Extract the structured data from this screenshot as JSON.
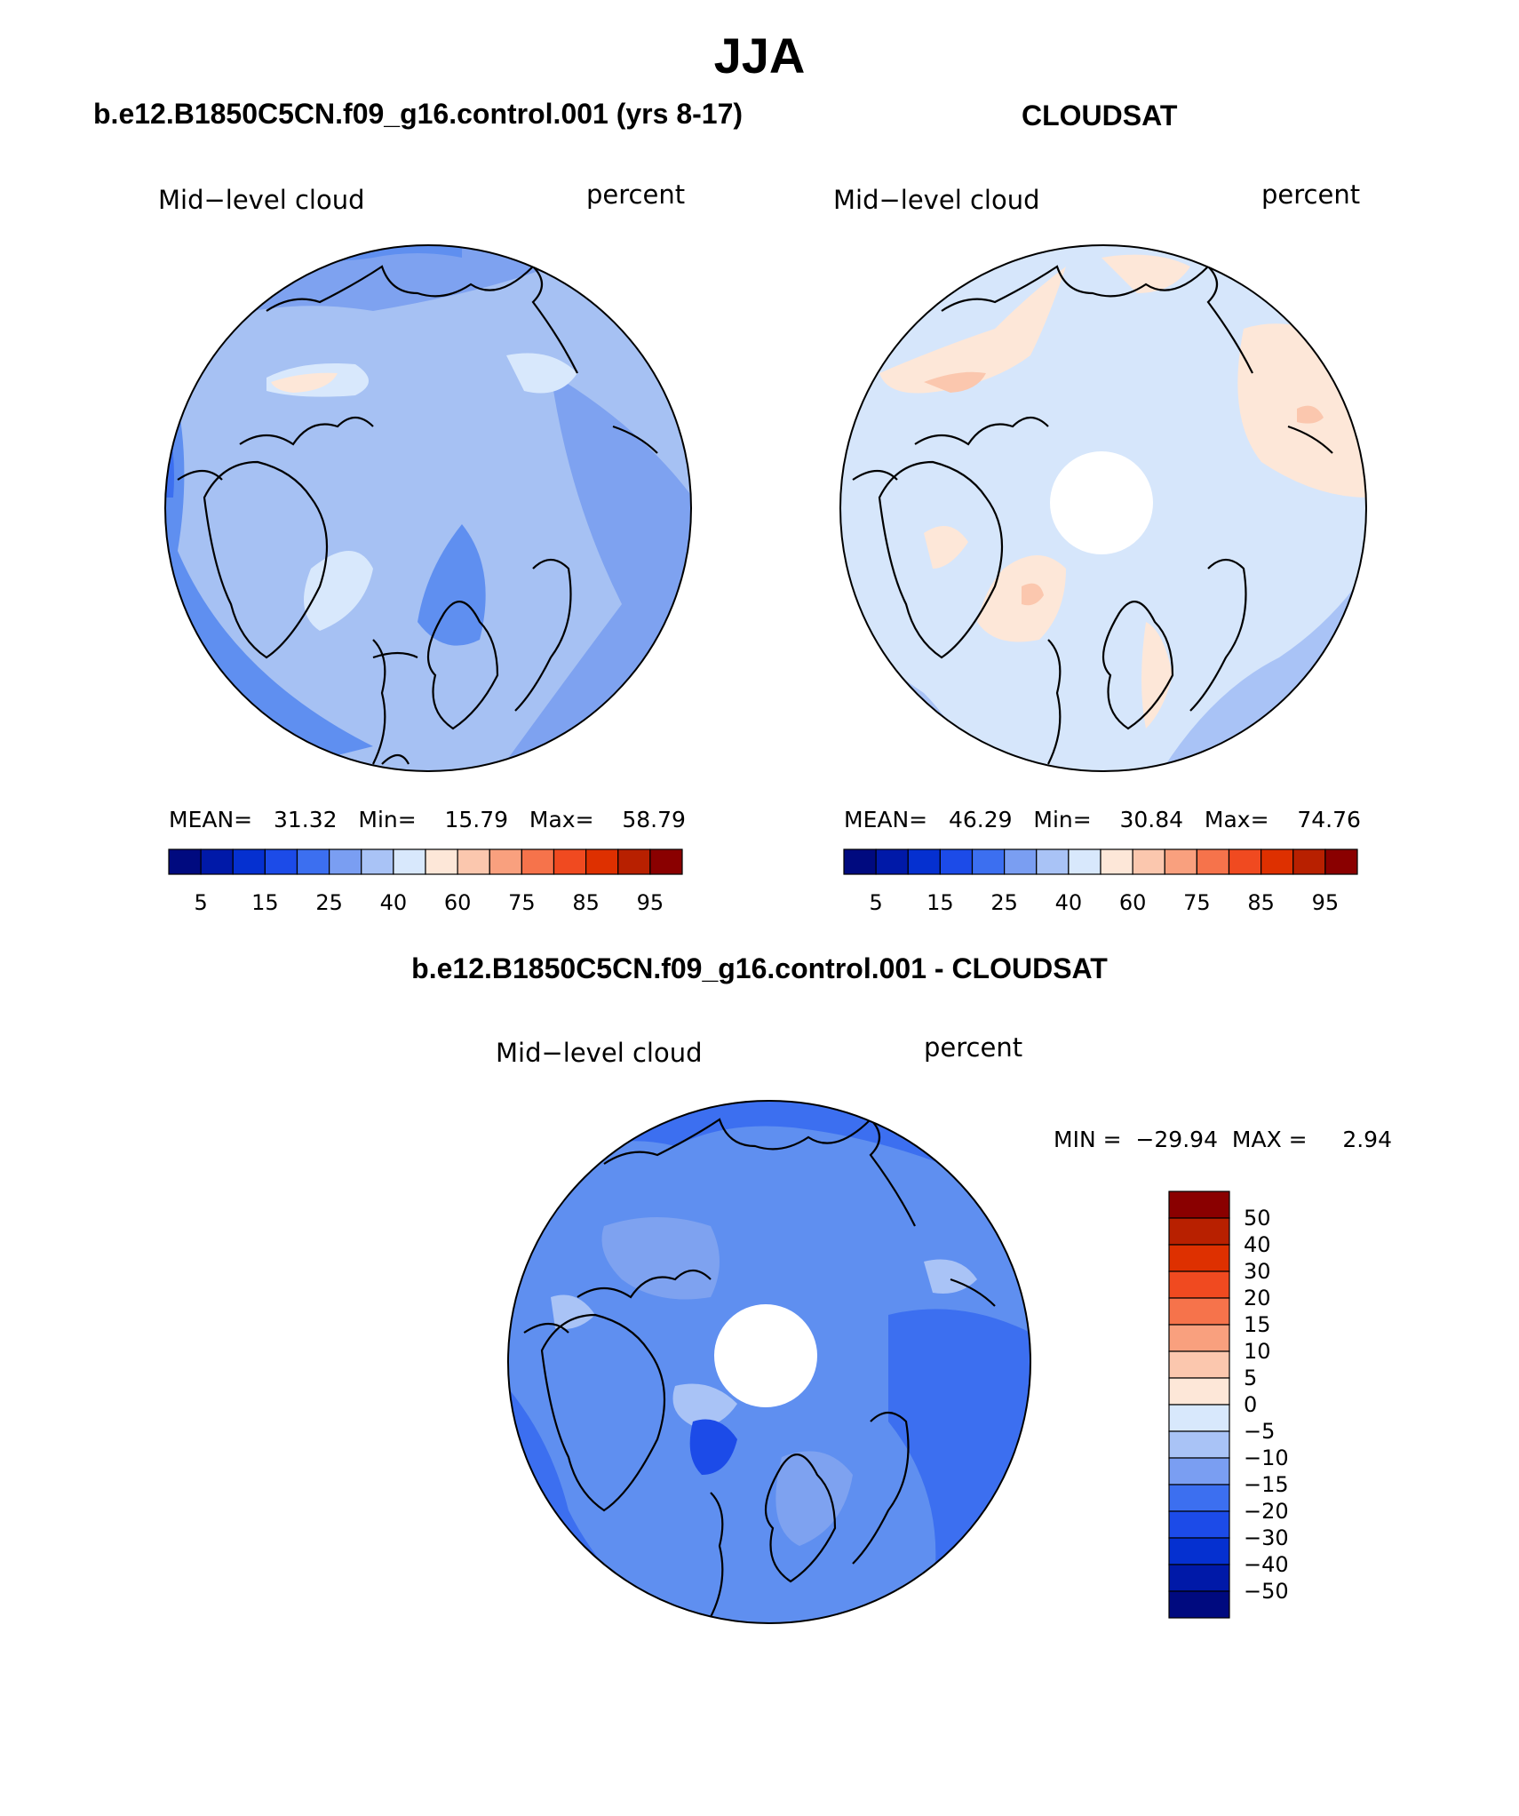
{
  "title": "JJA",
  "panels": [
    {
      "title": "b.e12.B1850C5CN.f09_g16.control.001 (yrs 8-17)",
      "variable": "Mid−level cloud",
      "units": "percent",
      "stats": {
        "mean_label": "MEAN=",
        "mean": "31.32",
        "min_label": "Min=",
        "min": "15.79",
        "max_label": "Max=",
        "max": "58.79"
      }
    },
    {
      "title": "CLOUDSAT",
      "variable": "Mid−level cloud",
      "units": "percent",
      "stats": {
        "mean_label": "MEAN=",
        "mean": "46.29",
        "min_label": "Min=",
        "min": "30.84",
        "max_label": "Max=",
        "max": "74.76"
      }
    },
    {
      "title": "b.e12.B1850C5CN.f09_g16.control.001 - CLOUDSAT",
      "variable": "Mid−level cloud",
      "units": "percent",
      "stats": {
        "min_label": "MIN =",
        "min": "−29.94",
        "max_label": "MAX =",
        "max": "2.94"
      }
    }
  ],
  "colorbar_abs": {
    "colors": [
      "#000a7f",
      "#0019a8",
      "#0530d0",
      "#1c4be8",
      "#3c6ff0",
      "#7a9ef2",
      "#a9c3f6",
      "#d8e8fc",
      "#fde7d8",
      "#fbc7ae",
      "#f9a07e",
      "#f6734b",
      "#f04a20",
      "#de3000",
      "#b82000",
      "#8a0000"
    ],
    "labels": [
      "5",
      "15",
      "25",
      "40",
      "60",
      "75",
      "85",
      "95"
    ]
  },
  "colorbar_diff": {
    "colors": [
      "#8a0000",
      "#b82000",
      "#de3000",
      "#f04a20",
      "#f6734b",
      "#f9a07e",
      "#fbc7ae",
      "#fde7d8",
      "#d8e8fc",
      "#a9c3f6",
      "#7a9ef2",
      "#3c6ff0",
      "#1c4be8",
      "#0530d0",
      "#0019a8",
      "#000a7f"
    ],
    "labels": [
      "50",
      "40",
      "30",
      "20",
      "15",
      "10",
      "5",
      "0",
      "−5",
      "−10",
      "−15",
      "−20",
      "−30",
      "−40",
      "−50"
    ]
  },
  "field_colors": {
    "model_base": "#a6c1f3",
    "cloudsat_base": "#d6e6fb",
    "diff_base": "#5f8ff0"
  }
}
